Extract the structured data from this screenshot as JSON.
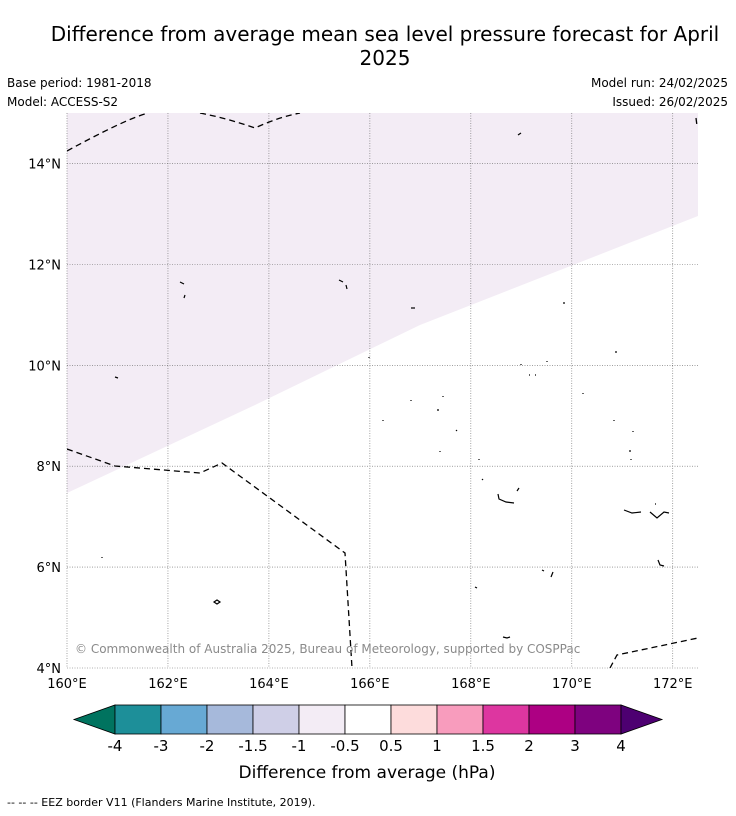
{
  "title": "Difference from average mean sea level pressure forecast for April 2025",
  "info": {
    "base_period": "Base period: 1981-2018",
    "model": "Model: ACCESS-S2",
    "model_run": "Model run: 24/02/2025",
    "issued": "Issued: 26/02/2025"
  },
  "copyright": "© Commonwealth of Australia 2025, Bureau of Meteorology, supported by COSPPac",
  "footer_note": "--  --  -- EEZ border V11 (Flanders Marine Institute, 2019).",
  "map": {
    "lon_labels": [
      "160°E",
      "162°E",
      "164°E",
      "166°E",
      "168°E",
      "170°E",
      "172°E"
    ],
    "lat_labels": [
      "14°N",
      "12°N",
      "10°N",
      "8°N",
      "6°N",
      "4°N"
    ],
    "lon_range": [
      160,
      172.5
    ],
    "lat_range": [
      4,
      15
    ],
    "anomaly_region": {
      "level": "-1 to -0.5 hPa",
      "color": "#f3ecf5"
    }
  },
  "colorbar": {
    "label": "Difference from average (hPa)",
    "ticks": [
      "-4",
      "-3",
      "-2",
      "-1.5",
      "-1",
      "-0.5",
      "0.5",
      "1",
      "1.5",
      "2",
      "3",
      "4"
    ],
    "colors": [
      "#00735f",
      "#1d8f99",
      "#67a9d4",
      "#a6b9db",
      "#cfcfe7",
      "#f3ecf5",
      "#ffffff",
      "#fddcdc",
      "#f89cbd",
      "#dd36a0",
      "#ad0083",
      "#7e027f",
      "#4d0071"
    ]
  }
}
